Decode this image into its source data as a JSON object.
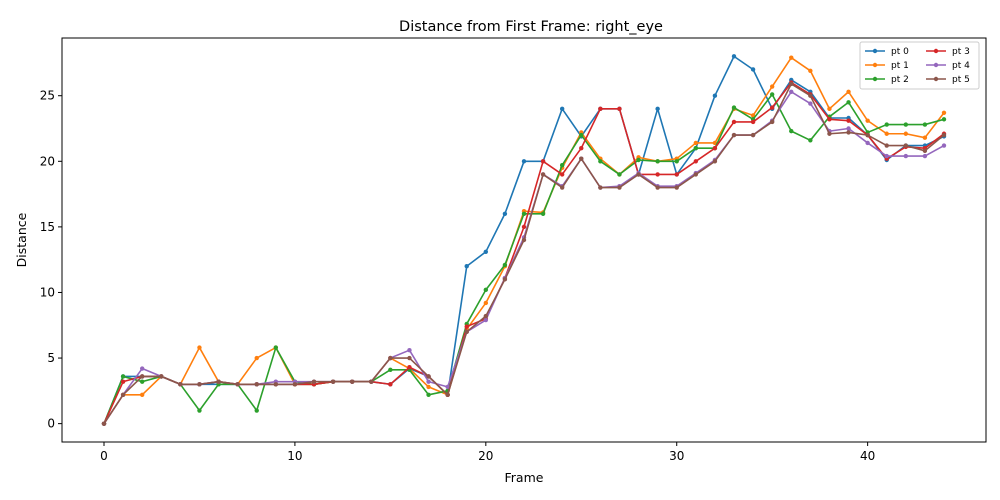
{
  "chart_data": {
    "type": "line",
    "title": "Distance from First Frame: right_eye",
    "xlabel": "Frame",
    "ylabel": "Distance",
    "xlim": [
      -2.2,
      46.2
    ],
    "ylim": [
      -1.4,
      29.4
    ],
    "xticks": [
      0,
      10,
      20,
      30,
      40
    ],
    "yticks": [
      0,
      5,
      10,
      15,
      20,
      25
    ],
    "grid": false,
    "legend": {
      "placement": "top-right",
      "columns": 2
    },
    "x": [
      0,
      1,
      2,
      3,
      4,
      5,
      6,
      7,
      8,
      9,
      10,
      11,
      12,
      13,
      14,
      15,
      16,
      17,
      18,
      19,
      20,
      21,
      22,
      23,
      24,
      25,
      26,
      27,
      28,
      29,
      30,
      31,
      32,
      33,
      34,
      35,
      36,
      37,
      38,
      39,
      40,
      41,
      42,
      43,
      44
    ],
    "series": [
      {
        "name": "pt 0",
        "color": "#1f77b4",
        "values": [
          0,
          3.6,
          3.6,
          3.6,
          3.0,
          3.0,
          3.0,
          3.0,
          3.0,
          3.0,
          3.0,
          3.0,
          3.2,
          3.2,
          3.2,
          3.0,
          4.2,
          3.6,
          2.2,
          12.0,
          13.1,
          16.0,
          20.0,
          20.0,
          24.0,
          21.9,
          24.0,
          24.0,
          19.0,
          24.0,
          19.0,
          21.0,
          25.0,
          28.0,
          27.0,
          24.0,
          26.2,
          25.3,
          23.3,
          23.3,
          22.0,
          20.1,
          21.2,
          21.2,
          21.9
        ]
      },
      {
        "name": "pt 1",
        "color": "#ff7f0e",
        "values": [
          0,
          2.2,
          2.2,
          3.6,
          3.0,
          5.8,
          3.2,
          3.0,
          5.0,
          5.8,
          3.0,
          3.0,
          3.2,
          3.2,
          3.2,
          5.0,
          4.2,
          2.8,
          2.2,
          7.2,
          9.2,
          12.0,
          16.2,
          16.1,
          19.5,
          22.2,
          20.2,
          19.0,
          20.3,
          20.0,
          20.2,
          21.4,
          21.4,
          24.0,
          23.5,
          25.7,
          27.9,
          26.9,
          24.0,
          25.3,
          23.1,
          22.1,
          22.1,
          21.8,
          23.7
        ]
      },
      {
        "name": "pt 2",
        "color": "#2ca02c",
        "values": [
          0,
          3.6,
          3.2,
          3.6,
          3.0,
          1.0,
          3.0,
          3.0,
          1.0,
          5.8,
          3.2,
          3.0,
          3.2,
          3.2,
          3.2,
          4.1,
          4.1,
          2.2,
          2.5,
          7.6,
          10.2,
          12.1,
          16.0,
          16.0,
          19.7,
          22.0,
          20.0,
          19.0,
          20.1,
          20.0,
          20.0,
          21.0,
          21.0,
          24.1,
          23.2,
          25.1,
          22.3,
          21.6,
          23.4,
          24.5,
          22.2,
          22.8,
          22.8,
          22.8,
          23.2
        ]
      },
      {
        "name": "pt 3",
        "color": "#d62728",
        "values": [
          0,
          3.2,
          3.6,
          3.6,
          3.0,
          3.0,
          3.2,
          3.0,
          3.0,
          3.0,
          3.0,
          3.0,
          3.2,
          3.2,
          3.2,
          3.0,
          4.3,
          3.6,
          2.2,
          7.4,
          8.0,
          11.1,
          15.0,
          20.0,
          19.0,
          21.0,
          24.0,
          24.0,
          19.0,
          19.0,
          19.0,
          20.0,
          21.0,
          23.0,
          23.0,
          24.1,
          26.0,
          25.1,
          23.2,
          23.1,
          22.0,
          20.2,
          21.1,
          21.0,
          22.1
        ]
      },
      {
        "name": "pt 4",
        "color": "#9467bd",
        "values": [
          0,
          2.2,
          4.2,
          3.6,
          3.0,
          3.0,
          3.2,
          3.0,
          3.0,
          3.2,
          3.2,
          3.2,
          3.2,
          3.2,
          3.2,
          5.0,
          5.6,
          3.2,
          2.8,
          7.0,
          7.9,
          11.1,
          14.2,
          19.0,
          18.1,
          20.2,
          18.0,
          18.1,
          19.1,
          18.1,
          18.1,
          19.1,
          20.1,
          22.0,
          22.0,
          23.1,
          25.3,
          24.4,
          22.3,
          22.5,
          21.4,
          20.4,
          20.4,
          20.4,
          21.2
        ]
      },
      {
        "name": "pt 5",
        "color": "#8c564b",
        "values": [
          0,
          2.2,
          3.6,
          3.6,
          3.0,
          3.0,
          3.2,
          3.0,
          3.0,
          3.0,
          3.0,
          3.2,
          3.2,
          3.2,
          3.2,
          5.0,
          5.0,
          3.6,
          2.2,
          7.0,
          8.2,
          11.0,
          14.0,
          19.0,
          18.0,
          20.2,
          18.0,
          18.0,
          19.0,
          18.0,
          18.0,
          19.0,
          20.0,
          22.0,
          22.0,
          23.0,
          25.9,
          25.0,
          22.1,
          22.2,
          22.0,
          21.2,
          21.2,
          20.8,
          22.0
        ]
      }
    ]
  }
}
